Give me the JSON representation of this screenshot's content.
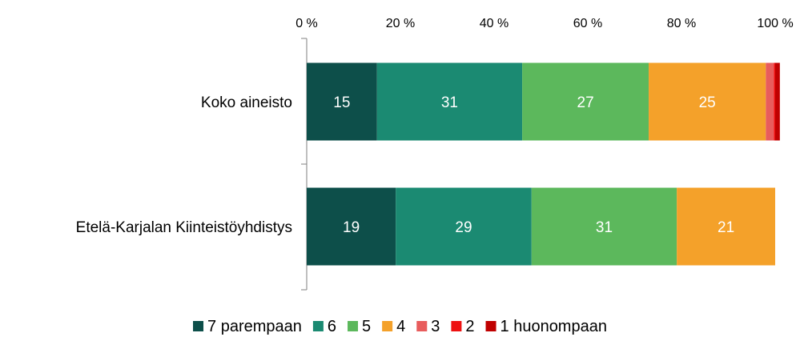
{
  "chart_data": {
    "type": "bar",
    "orientation": "horizontal",
    "stacked": true,
    "percent_stacked": true,
    "categories": [
      "Koko aineisto",
      "Etelä-Karjalan Kiinteistöyhdistys"
    ],
    "series": [
      {
        "name": "7 parempaan",
        "color": "#0d4f4a",
        "values": [
          15,
          19
        ]
      },
      {
        "name": "6",
        "color": "#1b8a72",
        "values": [
          31,
          29
        ]
      },
      {
        "name": "5",
        "color": "#5cb85c",
        "values": [
          27,
          31
        ]
      },
      {
        "name": "4",
        "color": "#f4a12a",
        "values": [
          25,
          21
        ]
      },
      {
        "name": "3",
        "color": "#e85c5c",
        "values": [
          1.7,
          0
        ]
      },
      {
        "name": "2",
        "color": "#ee1111",
        "values": [
          0.3,
          0
        ]
      },
      {
        "name": "1 huonompaan",
        "color": "#c00000",
        "values": [
          1,
          0
        ]
      }
    ],
    "data_labels": [
      [
        "15",
        "31",
        "27",
        "25",
        "",
        "",
        ""
      ],
      [
        "19",
        "29",
        "31",
        "21",
        "",
        "",
        ""
      ]
    ],
    "xaxis": {
      "range": [
        0,
        100
      ],
      "position": "top",
      "ticks": [
        "0 %",
        "20 %",
        "40 %",
        "60 %",
        "80 %",
        "100 %"
      ]
    },
    "legend": {
      "placement": "bottom"
    },
    "grid": false,
    "title": "",
    "xlabel": "",
    "ylabel": ""
  }
}
